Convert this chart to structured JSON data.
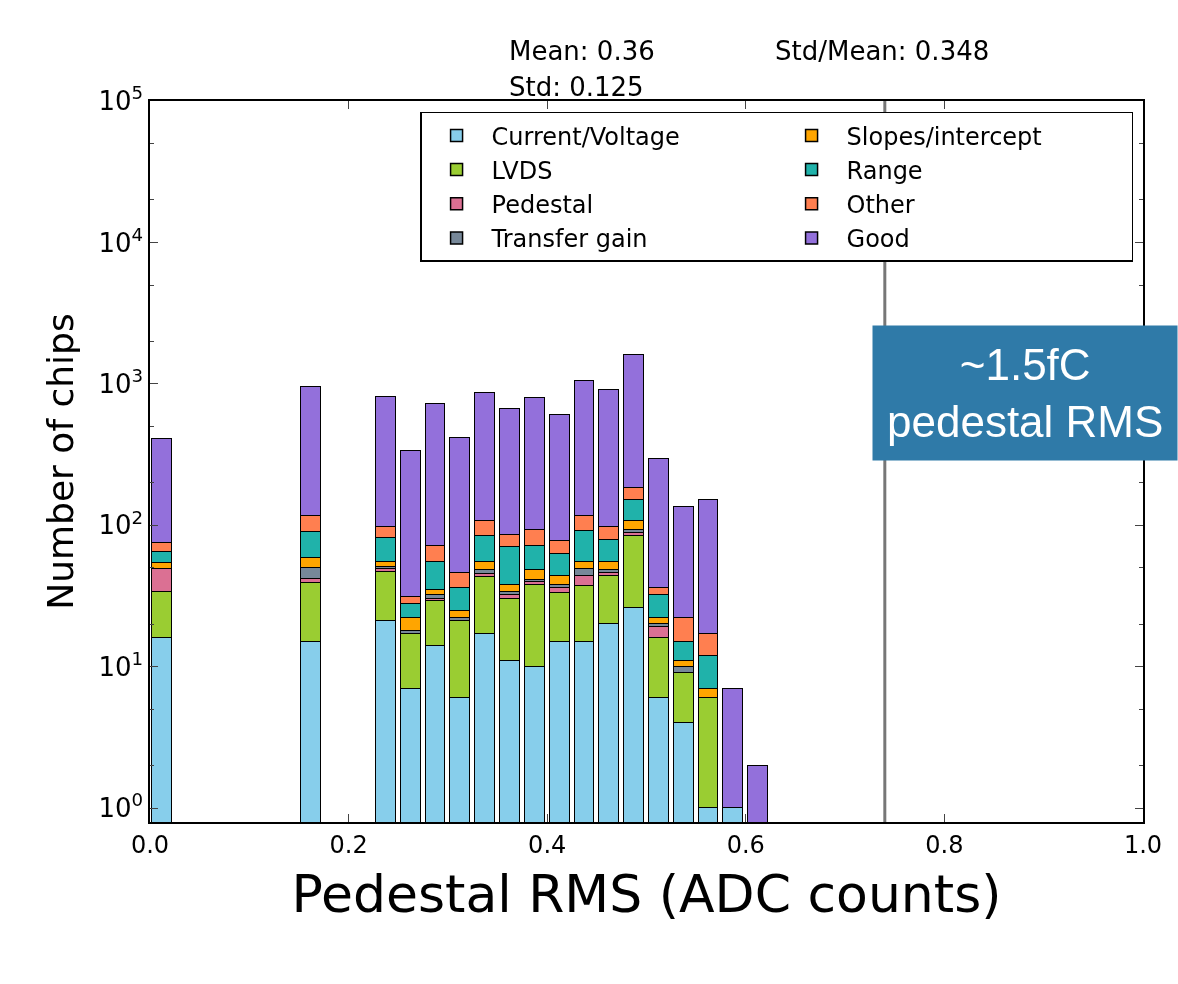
{
  "chart_data": {
    "type": "bar",
    "stacked": true,
    "log": "y",
    "xlabel": "Pedestal RMS (ADC counts)",
    "ylabel": "Number of chips",
    "x": [
      0.0125,
      0.1625,
      0.2375,
      0.2625,
      0.2875,
      0.3125,
      0.3375,
      0.3625,
      0.3875,
      0.4125,
      0.4375,
      0.4625,
      0.4875,
      0.5125,
      0.5375,
      0.5625,
      0.5875,
      0.6125
    ],
    "series": [
      {
        "name": "Current/Voltage",
        "color": "#87ceeb",
        "values": [
          16,
          15,
          21,
          7,
          14,
          6,
          17,
          11,
          10,
          15,
          15,
          20,
          26,
          6,
          4,
          1,
          1,
          null
        ]
      },
      {
        "name": "LVDS",
        "color": "#9acd32",
        "values": [
          18,
          24,
          26,
          10,
          15,
          15,
          26,
          19,
          28,
          18,
          22,
          24,
          58,
          10,
          5,
          5,
          null,
          null
        ]
      },
      {
        "name": "Pedestal",
        "color": "#db7093",
        "values": [
          15,
          3,
          2,
          null,
          1,
          null,
          2,
          2,
          2,
          3,
          7,
          2,
          4,
          3,
          null,
          null,
          null,
          null
        ]
      },
      {
        "name": "Transfer gain",
        "color": "#778899",
        "values": [
          null,
          8,
          2,
          1,
          2,
          1,
          3,
          2,
          1,
          2,
          5,
          2,
          5,
          1,
          1,
          null,
          null,
          null
        ]
      },
      {
        "name": "Slopes/intercept",
        "color": "#ffa500",
        "values": [
          5,
          9,
          4,
          4,
          3,
          3,
          7,
          4,
          7,
          6,
          6,
          7,
          14,
          2,
          1,
          1,
          null,
          null
        ]
      },
      {
        "name": "Range",
        "color": "#20b2aa",
        "values": [
          11,
          31,
          27,
          6,
          20,
          11,
          29,
          32,
          24,
          19,
          37,
          24,
          45,
          10,
          4,
          5,
          null,
          null
        ]
      },
      {
        "name": "Other",
        "color": "#ff7f50",
        "values": [
          10,
          27,
          15,
          3,
          16,
          10,
          23,
          15,
          21,
          14,
          24,
          19,
          31,
          4,
          7,
          5,
          null,
          null
        ]
      },
      {
        "name": "Good",
        "color": "#9370db",
        "values": [
          336,
          829,
          708,
          307,
          652,
          367,
          758,
          585,
          696,
          526,
          929,
          804,
          1424,
          261,
          113,
          135,
          6,
          2
        ]
      }
    ],
    "xlim": [
      0.0,
      1.0
    ],
    "xticks": [
      {
        "value": 0.0,
        "label": "0.0"
      },
      {
        "value": 0.2,
        "label": "0.2"
      },
      {
        "value": 0.4,
        "label": "0.4"
      },
      {
        "value": 0.6,
        "label": "0.6"
      },
      {
        "value": 0.8,
        "label": "0.8"
      },
      {
        "value": 1.0,
        "label": "1.0"
      }
    ],
    "ylim": [
      0.8,
      100000
    ],
    "yticks": [
      {
        "value": 1,
        "label": "10$^{0}$"
      },
      {
        "value": 10,
        "label": "10$^{1}$"
      },
      {
        "value": 100,
        "label": "10$^{2}$"
      },
      {
        "value": 1000,
        "label": "10$^{3}$"
      },
      {
        "value": 10000,
        "label": "10$^{4}$"
      },
      {
        "value": 100000,
        "label": "10$^{5}$"
      }
    ],
    "ref_lines": [
      {
        "axis": "x",
        "value": 0.74,
        "color": "#777777"
      }
    ],
    "annotations": [
      "Mean: 0.36",
      "Std: 0.125",
      "Std/Mean: 0.348",
      "~1.5fC\npedestal RMS"
    ],
    "legend": "top right"
  }
}
